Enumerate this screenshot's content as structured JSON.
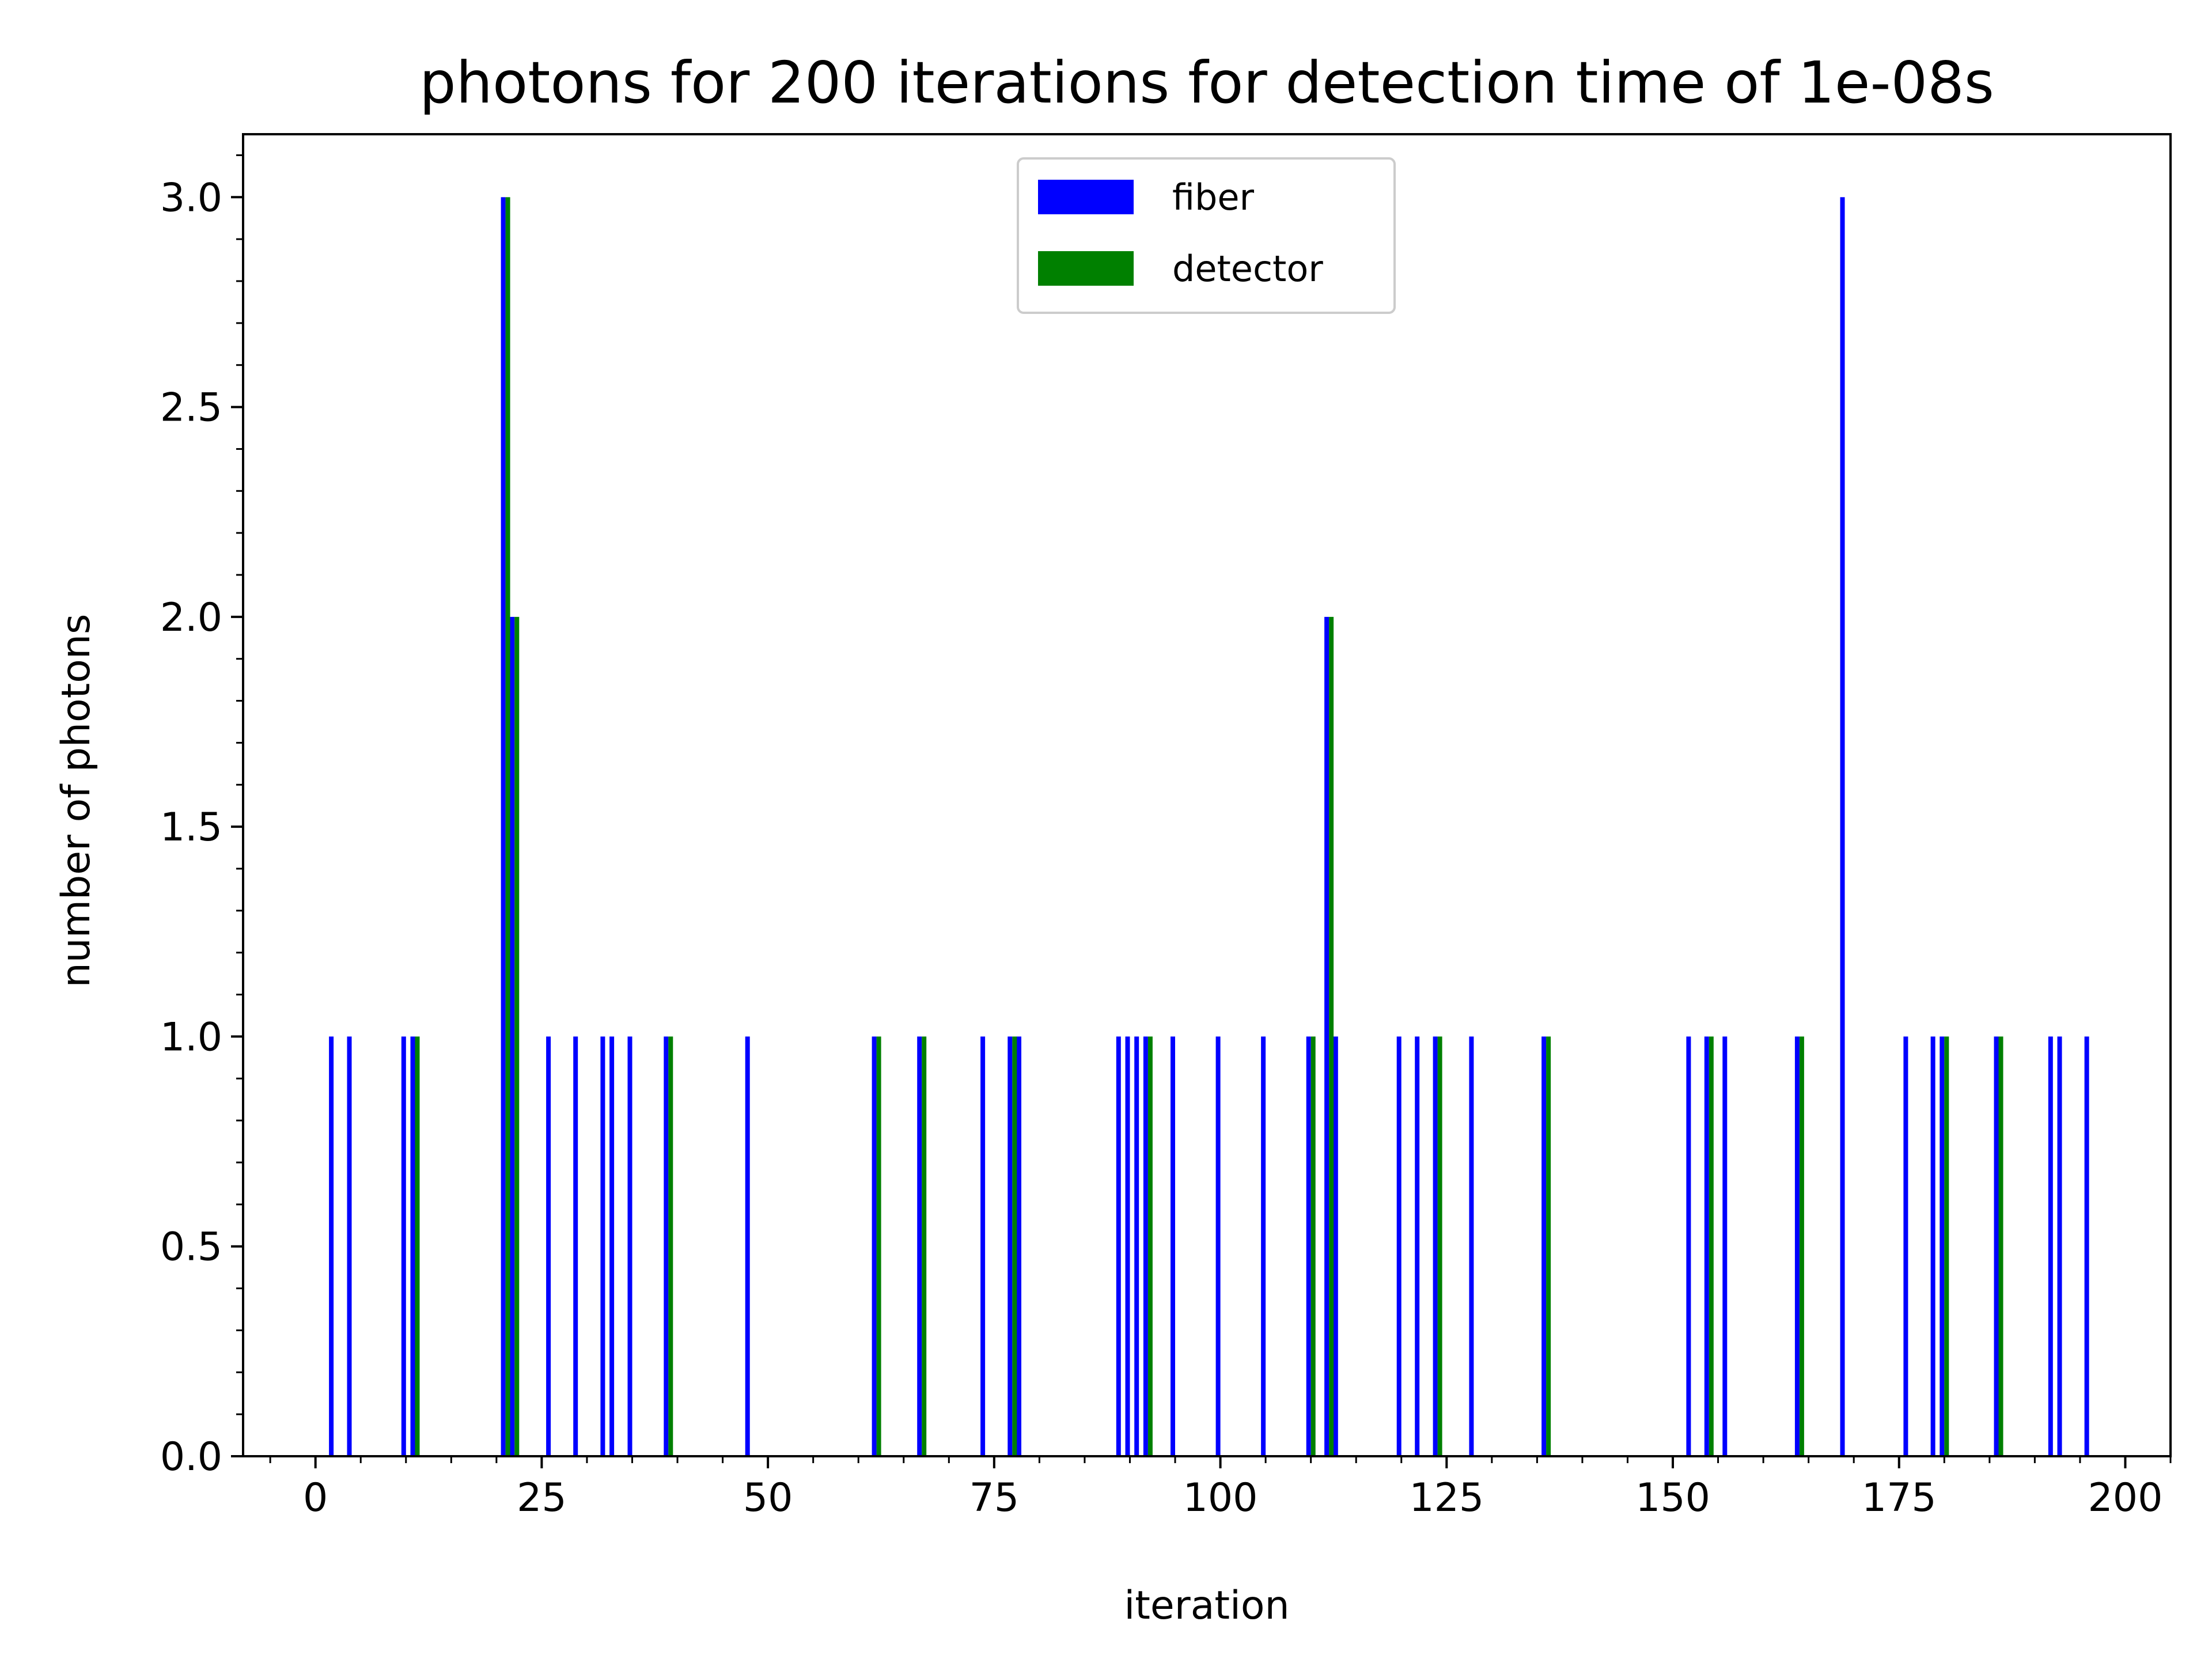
{
  "chart_data": {
    "type": "bar",
    "title": "photons for 200 iterations for detection time of 1e-08s",
    "xlabel": "iteration",
    "ylabel": "number of photons",
    "xlim": [
      -8,
      205
    ],
    "ylim": [
      0,
      3.15
    ],
    "xticks": [
      0,
      25,
      50,
      75,
      100,
      125,
      150,
      175,
      200
    ],
    "xtick_labels": [
      "0",
      "25",
      "50",
      "75",
      "100",
      "125",
      "150",
      "175",
      "200"
    ],
    "yticks": [
      0.0,
      0.5,
      1.0,
      1.5,
      2.0,
      2.5,
      3.0
    ],
    "ytick_labels": [
      "0.0",
      "0.5",
      "1.0",
      "1.5",
      "2.0",
      "2.5",
      "3.0"
    ],
    "grid": false,
    "legend_position": "top-center",
    "series": [
      {
        "name": "fiber",
        "color": "#0000ff",
        "x": [
          2,
          4,
          10,
          11,
          21,
          22,
          26,
          29,
          32,
          33,
          35,
          39,
          48,
          62,
          67,
          74,
          77,
          78,
          89,
          90,
          91,
          92,
          95,
          100,
          105,
          110,
          112,
          113,
          120,
          122,
          124,
          128,
          136,
          152,
          154,
          156,
          164,
          169,
          176,
          179,
          180,
          186,
          192,
          193,
          196
        ],
        "values": [
          1,
          1,
          1,
          1,
          3,
          2,
          1,
          1,
          1,
          1,
          1,
          1,
          1,
          1,
          1,
          1,
          1,
          1,
          1,
          1,
          1,
          1,
          1,
          1,
          1,
          1,
          2,
          1,
          1,
          1,
          1,
          1,
          1,
          1,
          1,
          1,
          1,
          3,
          1,
          1,
          1,
          1,
          1,
          1,
          1
        ]
      },
      {
        "name": "detector",
        "color": "#008000",
        "x": [
          11,
          21,
          22,
          39,
          62,
          67,
          77,
          92,
          110,
          112,
          124,
          136,
          154,
          164,
          180,
          186
        ],
        "values": [
          1,
          3,
          2,
          1,
          1,
          1,
          1,
          1,
          1,
          2,
          1,
          1,
          1,
          1,
          1,
          1
        ]
      }
    ]
  }
}
